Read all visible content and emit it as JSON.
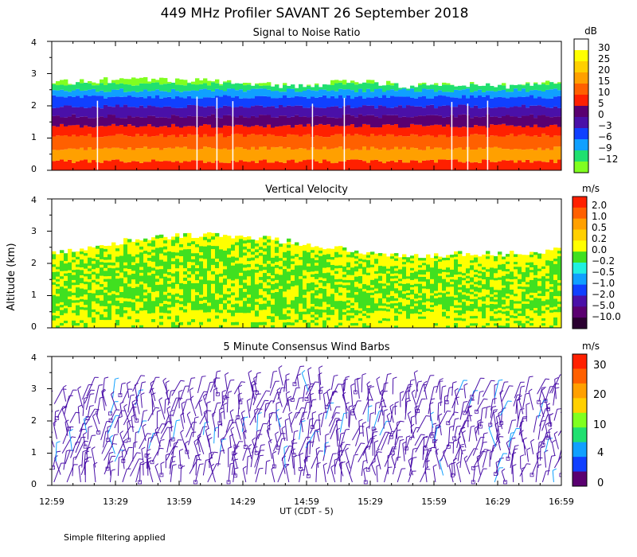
{
  "figure": {
    "title": "449 MHz Profiler SAVANT 26 September 2018",
    "y_axis_label": "Altitude (km)",
    "x_axis_label": "UT  (CDT - 5)",
    "footnote": "Simple filtering applied"
  },
  "chart_data": [
    {
      "type": "heatmap",
      "title": "Signal to Noise Ratio",
      "x": {
        "label": "UT  (CDT - 5)",
        "ticks": [
          "12:59",
          "13:29",
          "13:59",
          "14:29",
          "14:59",
          "15:29",
          "15:59",
          "16:29",
          "16:59"
        ]
      },
      "y": {
        "label": "Altitude (km)",
        "range": [
          0,
          4
        ],
        "ticks": [
          "0",
          "1",
          "2",
          "3",
          "4"
        ]
      },
      "colorbar": {
        "unit": "dB",
        "levels": [
          "30",
          "25",
          "20",
          "15",
          "10",
          "5",
          "0",
          "−3",
          "−6",
          "−9",
          "−12"
        ],
        "colors": [
          "#ffffff",
          "#ffff00",
          "#ffd000",
          "#ffa000",
          "#ff6000",
          "#ff2000",
          "#5a0070",
          "#4a10a8",
          "#1040ff",
          "#10a0ff",
          "#20e070",
          "#80ff20"
        ]
      },
      "profile": [
        {
          "altitude_km": 0.1,
          "color": "#ff2000"
        },
        {
          "altitude_km": 0.5,
          "color": "#ffa000"
        },
        {
          "altitude_km": 0.9,
          "color": "#ff6000"
        },
        {
          "altitude_km": 1.2,
          "color": "#ff2000"
        },
        {
          "altitude_km": 1.5,
          "color": "#5a0070"
        },
        {
          "altitude_km": 1.8,
          "color": "#4a10a8"
        },
        {
          "altitude_km": 2.1,
          "color": "#1040ff"
        },
        {
          "altitude_km": 2.3,
          "color": "#10a0ff"
        },
        {
          "altitude_km": 2.5,
          "color": "#20e070"
        },
        {
          "altitude_km": 2.7,
          "color": "#80ff20"
        }
      ],
      "top_km": [
        2.7,
        2.8,
        2.8,
        2.8,
        2.7,
        2.6,
        2.8,
        2.6,
        2.7,
        2.6,
        2.8
      ]
    },
    {
      "type": "heatmap",
      "title": "Vertical Velocity",
      "x": {
        "label": "UT  (CDT - 5)",
        "ticks": [
          "12:59",
          "13:29",
          "13:59",
          "14:29",
          "14:59",
          "15:29",
          "15:59",
          "16:29",
          "16:59"
        ]
      },
      "y": {
        "label": "Altitude (km)",
        "range": [
          0,
          4
        ],
        "ticks": [
          "0",
          "1",
          "2",
          "3",
          "4"
        ]
      },
      "colorbar": {
        "unit": "m/s",
        "levels": [
          "2.0",
          "1.0",
          "0.5",
          "0.2",
          "0.0",
          "−0.2",
          "−0.5",
          "−1.0",
          "−2.0",
          "−5.0",
          "−10.0"
        ],
        "colors": [
          "#ff2000",
          "#ff6000",
          "#ffa000",
          "#ffd000",
          "#ffff00",
          "#40e020",
          "#20f0e0",
          "#10a0ff",
          "#1040ff",
          "#4a10a8",
          "#5a0070",
          "#2a0030"
        ]
      },
      "dominant_colors": [
        "#ffff00",
        "#40e020"
      ],
      "top_km": [
        2.3,
        2.6,
        2.8,
        2.9,
        2.8,
        2.6,
        2.4,
        2.2,
        2.3,
        2.3,
        2.4
      ]
    },
    {
      "type": "scatter",
      "title": "5 Minute Consensus Wind Barbs",
      "x": {
        "label": "UT  (CDT - 5)",
        "ticks": [
          "12:59",
          "13:29",
          "13:59",
          "14:29",
          "14:59",
          "15:29",
          "15:59",
          "16:29",
          "16:59"
        ]
      },
      "y": {
        "label": "Altitude (km)",
        "range": [
          0,
          4
        ],
        "ticks": [
          "0",
          "1",
          "2",
          "3",
          "4"
        ]
      },
      "colorbar": {
        "unit": "m/s",
        "levels": [
          "30",
          "20",
          "10",
          "4",
          "0"
        ],
        "colors": [
          "#ff2000",
          "#ff6000",
          "#ffa000",
          "#ffd000",
          "#80ff20",
          "#20e070",
          "#10a0ff",
          "#1040ff",
          "#5a0070"
        ]
      },
      "barb_color": "#4a10a8",
      "top_km": [
        2.7,
        2.9,
        3.0,
        3.1,
        3.2,
        2.9,
        3.0,
        2.9,
        2.9
      ]
    }
  ]
}
